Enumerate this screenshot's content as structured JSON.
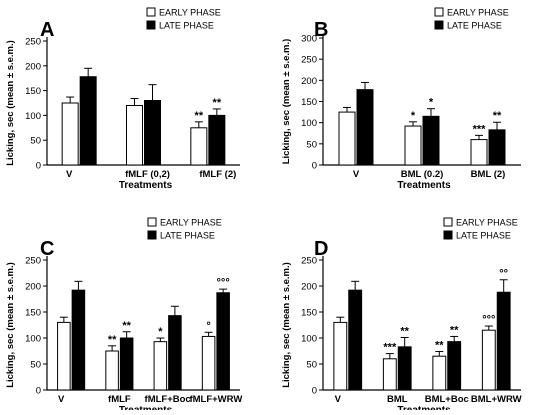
{
  "chart_data": [
    {
      "type": "bar",
      "panel_label": "A",
      "categories": [
        "V",
        "fMLF (0,2)",
        "fMLF (2)"
      ],
      "series": [
        {
          "name": "EARLY PHASE",
          "values": [
            125,
            120,
            75
          ],
          "errors": [
            12,
            14,
            12
          ],
          "fill": "#ffffff"
        },
        {
          "name": "LATE PHASE",
          "values": [
            178,
            130,
            100
          ],
          "errors": [
            17,
            32,
            13
          ],
          "fill": "#000000"
        }
      ],
      "annotations": [
        {
          "category": 2,
          "series": 0,
          "text": "**"
        },
        {
          "category": 2,
          "series": 1,
          "text": "**"
        }
      ],
      "xlabel": "Treatments",
      "ylabel": "Licking, sec (mean ± s.e.m.)",
      "yticks": [
        0,
        50,
        100,
        150,
        200,
        250
      ],
      "ylim": [
        0,
        250
      ],
      "legend_position": "top-right",
      "grid": false
    },
    {
      "type": "bar",
      "panel_label": "B",
      "categories": [
        "V",
        "BML (0.2)",
        "BML (2)"
      ],
      "series": [
        {
          "name": "EARLY PHASE",
          "values": [
            125,
            92,
            60
          ],
          "errors": [
            11,
            10,
            10
          ],
          "fill": "#ffffff"
        },
        {
          "name": "LATE PHASE",
          "values": [
            178,
            115,
            83
          ],
          "errors": [
            17,
            18,
            18
          ],
          "fill": "#000000"
        }
      ],
      "annotations": [
        {
          "category": 1,
          "series": 0,
          "text": "*"
        },
        {
          "category": 1,
          "series": 1,
          "text": "*"
        },
        {
          "category": 2,
          "series": 0,
          "text": "***"
        },
        {
          "category": 2,
          "series": 1,
          "text": "**"
        }
      ],
      "xlabel": "Treatments",
      "ylabel": "Licking, sec (mean ± s.e.m.)",
      "yticks": [
        0,
        50,
        100,
        150,
        200,
        250,
        300
      ],
      "ylim": [
        0,
        300
      ],
      "legend_position": "top-right",
      "grid": false
    },
    {
      "type": "bar",
      "panel_label": "C",
      "categories": [
        "V",
        "fMLF",
        "fMLF+Boc",
        "fMLF+WRW"
      ],
      "series": [
        {
          "name": "EARLY PHASE",
          "values": [
            130,
            75,
            93,
            103
          ],
          "errors": [
            10,
            10,
            7,
            8
          ],
          "fill": "#ffffff"
        },
        {
          "name": "LATE PHASE",
          "values": [
            192,
            100,
            143,
            187
          ],
          "errors": [
            17,
            12,
            18,
            7
          ],
          "fill": "#000000"
        }
      ],
      "annotations": [
        {
          "category": 1,
          "series": 0,
          "text": "**"
        },
        {
          "category": 1,
          "series": 1,
          "text": "**"
        },
        {
          "category": 2,
          "series": 0,
          "text": "*"
        },
        {
          "category": 3,
          "series": 0,
          "text": "°"
        },
        {
          "category": 3,
          "series": 1,
          "text": "°°°"
        }
      ],
      "xlabel": "Treatments",
      "ylabel": "Licking, sec (mean ± s.e.m.)",
      "yticks": [
        0,
        50,
        100,
        150,
        200,
        250
      ],
      "ylim": [
        0,
        250
      ],
      "legend_position": "top-right",
      "grid": false
    },
    {
      "type": "bar",
      "panel_label": "D",
      "categories": [
        "V",
        "BML",
        "BML+Boc",
        "BML+WRW"
      ],
      "series": [
        {
          "name": "EARLY PHASE",
          "values": [
            130,
            60,
            65,
            115
          ],
          "errors": [
            10,
            10,
            9,
            8
          ],
          "fill": "#ffffff"
        },
        {
          "name": "LATE PHASE",
          "values": [
            192,
            83,
            93,
            188
          ],
          "errors": [
            17,
            18,
            10,
            24
          ],
          "fill": "#000000"
        }
      ],
      "annotations": [
        {
          "category": 1,
          "series": 0,
          "text": "***"
        },
        {
          "category": 1,
          "series": 1,
          "text": "**"
        },
        {
          "category": 2,
          "series": 0,
          "text": "**"
        },
        {
          "category": 2,
          "series": 1,
          "text": "**"
        },
        {
          "category": 3,
          "series": 0,
          "text": "°°°"
        },
        {
          "category": 3,
          "series": 1,
          "text": "°°"
        }
      ],
      "xlabel": "Treatments",
      "ylabel": "Licking, sec (mean ± s.e.m.)",
      "yticks": [
        0,
        50,
        100,
        150,
        200,
        250
      ],
      "ylim": [
        0,
        250
      ],
      "legend_position": "top-right",
      "grid": false
    }
  ]
}
